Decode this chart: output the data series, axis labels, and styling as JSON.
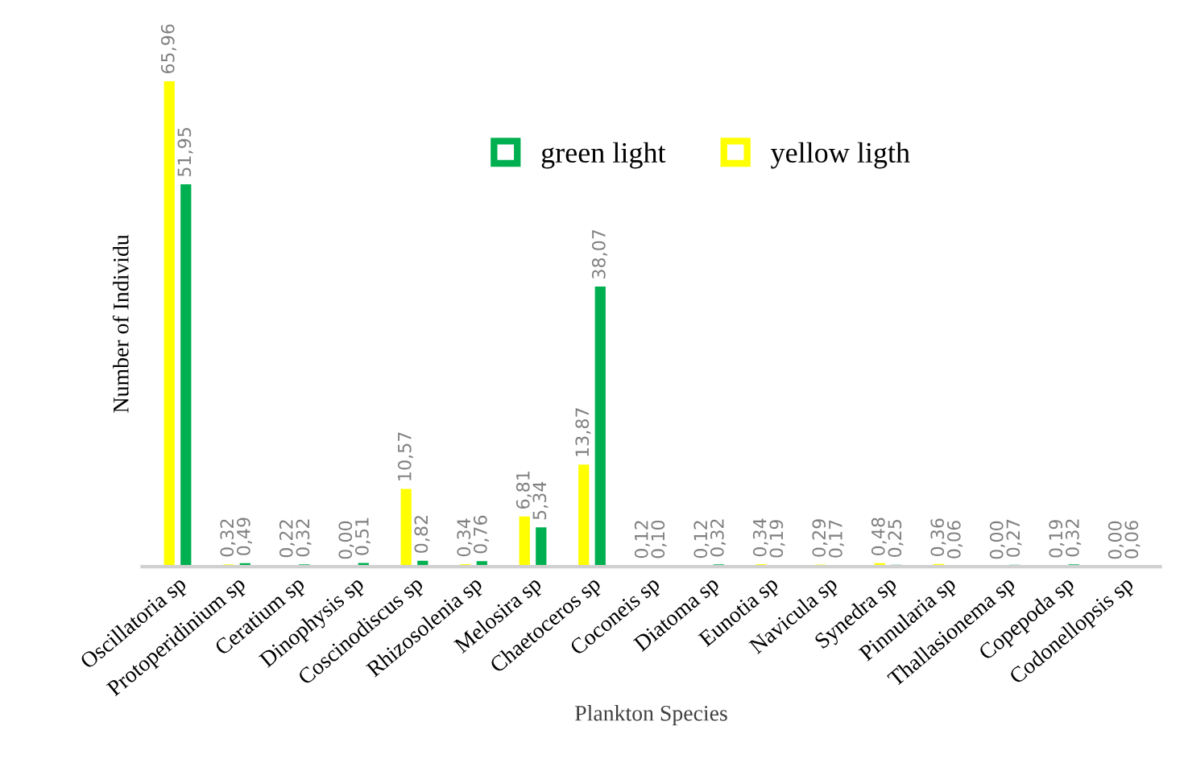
{
  "chart_data": {
    "type": "bar",
    "xlabel": "Plankton Species",
    "ylabel": "Number of Individu",
    "categories": [
      "Oscillatoria sp",
      "Protoperidinium sp",
      "Ceratium sp",
      "Dinophysis sp",
      "Coscinodiscus sp",
      "Rhizosolenia sp",
      "Melosira sp",
      "Chaetoceros sp",
      "Coconeis sp",
      "Diatoma sp",
      "Eunotia sp",
      "Navicula sp",
      "Synedra sp",
      "Pinnularia sp",
      "Thallasionema sp",
      "Copepoda sp",
      "Codonellopsis sp"
    ],
    "series": [
      {
        "name": "yellow ligth",
        "color": "#ffff00",
        "values": [
          65.96,
          0.32,
          0.22,
          0.0,
          10.57,
          0.34,
          6.81,
          13.87,
          0.12,
          0.12,
          0.34,
          0.29,
          0.48,
          0.36,
          0.0,
          0.19,
          0.0
        ],
        "value_labels": [
          "65,96",
          "0,32",
          "0,22",
          "0,00",
          "10,57",
          "0,34",
          "6,81",
          "13,87",
          "0,12",
          "0,12",
          "0,34",
          "0,29",
          "0,48",
          "0,36",
          "0,00",
          "0,19",
          "0,00"
        ]
      },
      {
        "name": "green light",
        "color": "#00b050",
        "values": [
          51.95,
          0.49,
          0.32,
          0.51,
          0.82,
          0.76,
          5.34,
          38.07,
          0.1,
          0.32,
          0.19,
          0.17,
          0.25,
          0.06,
          0.27,
          0.32,
          0.06
        ],
        "value_labels": [
          "51,95",
          "0,49",
          "0,32",
          "0,51",
          "0,82",
          "0,76",
          "5,34",
          "38,07",
          "0,10",
          "0,32",
          "0,19",
          "0,17",
          "0,25",
          "0,06",
          "0,27",
          "0,32",
          "0,06"
        ]
      }
    ],
    "ylim": [
      0,
      66
    ],
    "tick_labels": "x",
    "grid": false,
    "legend": "top"
  }
}
